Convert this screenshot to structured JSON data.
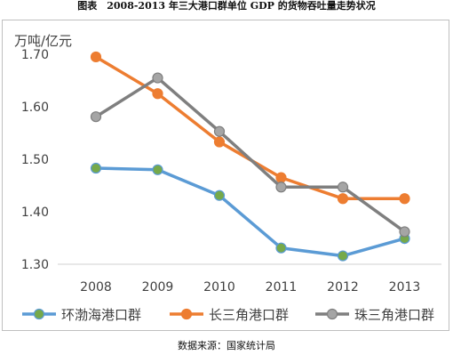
{
  "page": {
    "title": "图表　2008-2013 年三大港口群单位 GDP 的货物吞吐量走势状况",
    "source_note": "数据来源：国家统计局"
  },
  "chart_data": {
    "type": "line",
    "title": "图表　2008-2013 年三大港口群单位 GDP 的货物吞吐量走势状况",
    "ylabel": "万吨/亿元",
    "xlabel": "",
    "x": [
      "2008",
      "2009",
      "2010",
      "2011",
      "2012",
      "2013"
    ],
    "yticks": [
      "1.30",
      "1.40",
      "1.50",
      "1.60",
      "1.70"
    ],
    "ylim": [
      1.28,
      1.74
    ],
    "grid": false,
    "legend_position": "bottom",
    "series": [
      {
        "name": "环渤海港口群",
        "color": "#5b9bd5",
        "marker_color": "#76a94a",
        "values": [
          1.483,
          1.48,
          1.431,
          1.331,
          1.316,
          1.349
        ]
      },
      {
        "name": "长三角港口群",
        "color": "#ed7d31",
        "marker_color": "#ed7d31",
        "values": [
          1.695,
          1.625,
          1.533,
          1.465,
          1.425,
          1.425
        ]
      },
      {
        "name": "珠三角港口群",
        "color": "#7f7f7f",
        "marker_color": "#a5a5a5",
        "values": [
          1.581,
          1.655,
          1.553,
          1.447,
          1.447,
          1.362
        ]
      }
    ]
  }
}
